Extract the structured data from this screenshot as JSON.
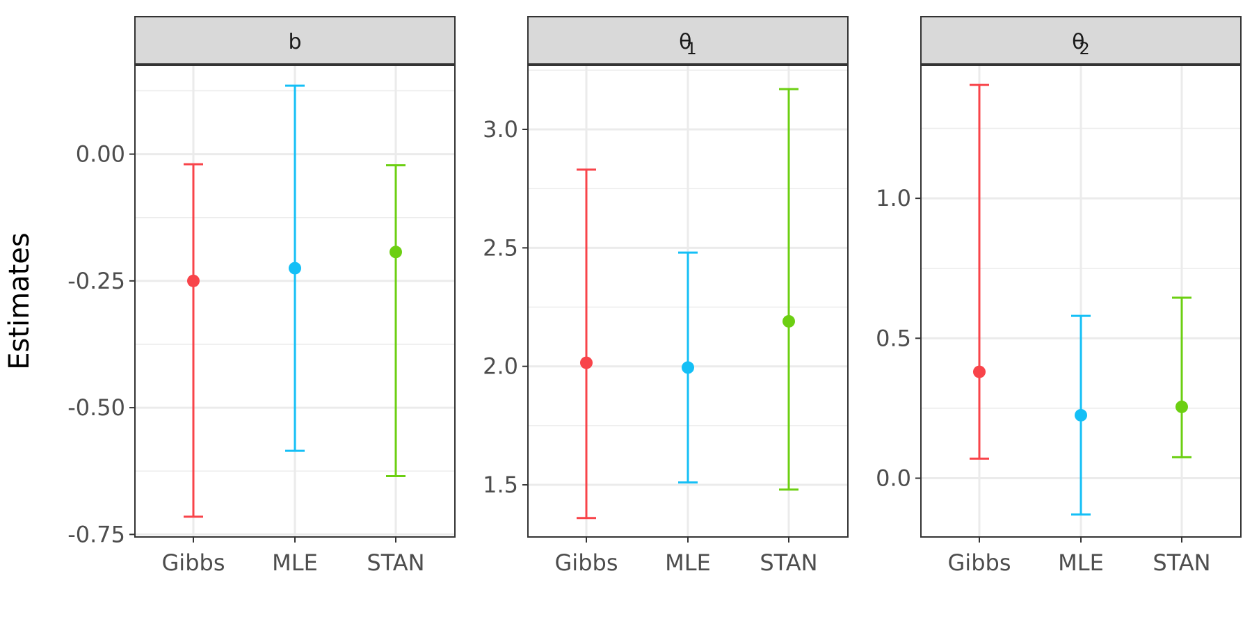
{
  "chart_data": {
    "type": "errorbar",
    "ylabel": "Estimates",
    "categories": [
      "Gibbs",
      "MLE",
      "STAN"
    ],
    "colors": {
      "Gibbs": "#F8444A",
      "MLE": "#14BFF6",
      "STAN": "#6CCF12"
    },
    "panels": [
      {
        "strip": "b",
        "strip_subscript": "",
        "ylim": [
          -0.755,
          0.175
        ],
        "y_ticks": [
          0.0,
          -0.25,
          -0.5,
          -0.75
        ],
        "y_tick_labels": [
          "0.00",
          "-0.25",
          "-0.50",
          "-0.75"
        ],
        "minor_ticks": [
          0.125,
          -0.125,
          -0.375,
          -0.625
        ],
        "points": [
          {
            "method": "Gibbs",
            "estimate": -0.25,
            "lower": -0.715,
            "upper": -0.02
          },
          {
            "method": "MLE",
            "estimate": -0.225,
            "lower": -0.585,
            "upper": 0.135
          },
          {
            "method": "STAN",
            "estimate": -0.193,
            "lower": -0.635,
            "upper": -0.022
          }
        ]
      },
      {
        "strip": "θ",
        "strip_subscript": "1",
        "ylim": [
          1.28,
          3.27
        ],
        "y_ticks": [
          3.0,
          2.5,
          2.0,
          1.5
        ],
        "y_tick_labels": [
          "3.0",
          "2.5",
          "2.0",
          "1.5"
        ],
        "minor_ticks": [
          3.25,
          2.75,
          2.25,
          1.75
        ],
        "points": [
          {
            "method": "Gibbs",
            "estimate": 2.015,
            "lower": 1.36,
            "upper": 2.83
          },
          {
            "method": "MLE",
            "estimate": 1.995,
            "lower": 1.51,
            "upper": 2.48
          },
          {
            "method": "STAN",
            "estimate": 2.19,
            "lower": 1.48,
            "upper": 3.17
          }
        ]
      },
      {
        "strip": "θ",
        "strip_subscript": "2",
        "ylim": [
          -0.21,
          1.475
        ],
        "y_ticks": [
          1.0,
          0.5,
          0.0
        ],
        "y_tick_labels": [
          "1.0",
          "0.5",
          "0.0"
        ],
        "minor_ticks": [
          1.25,
          0.75,
          0.25
        ],
        "points": [
          {
            "method": "Gibbs",
            "estimate": 0.38,
            "lower": 0.07,
            "upper": 1.405
          },
          {
            "method": "MLE",
            "estimate": 0.225,
            "lower": -0.13,
            "upper": 0.58
          },
          {
            "method": "STAN",
            "estimate": 0.255,
            "lower": 0.075,
            "upper": 0.645
          }
        ]
      }
    ]
  }
}
